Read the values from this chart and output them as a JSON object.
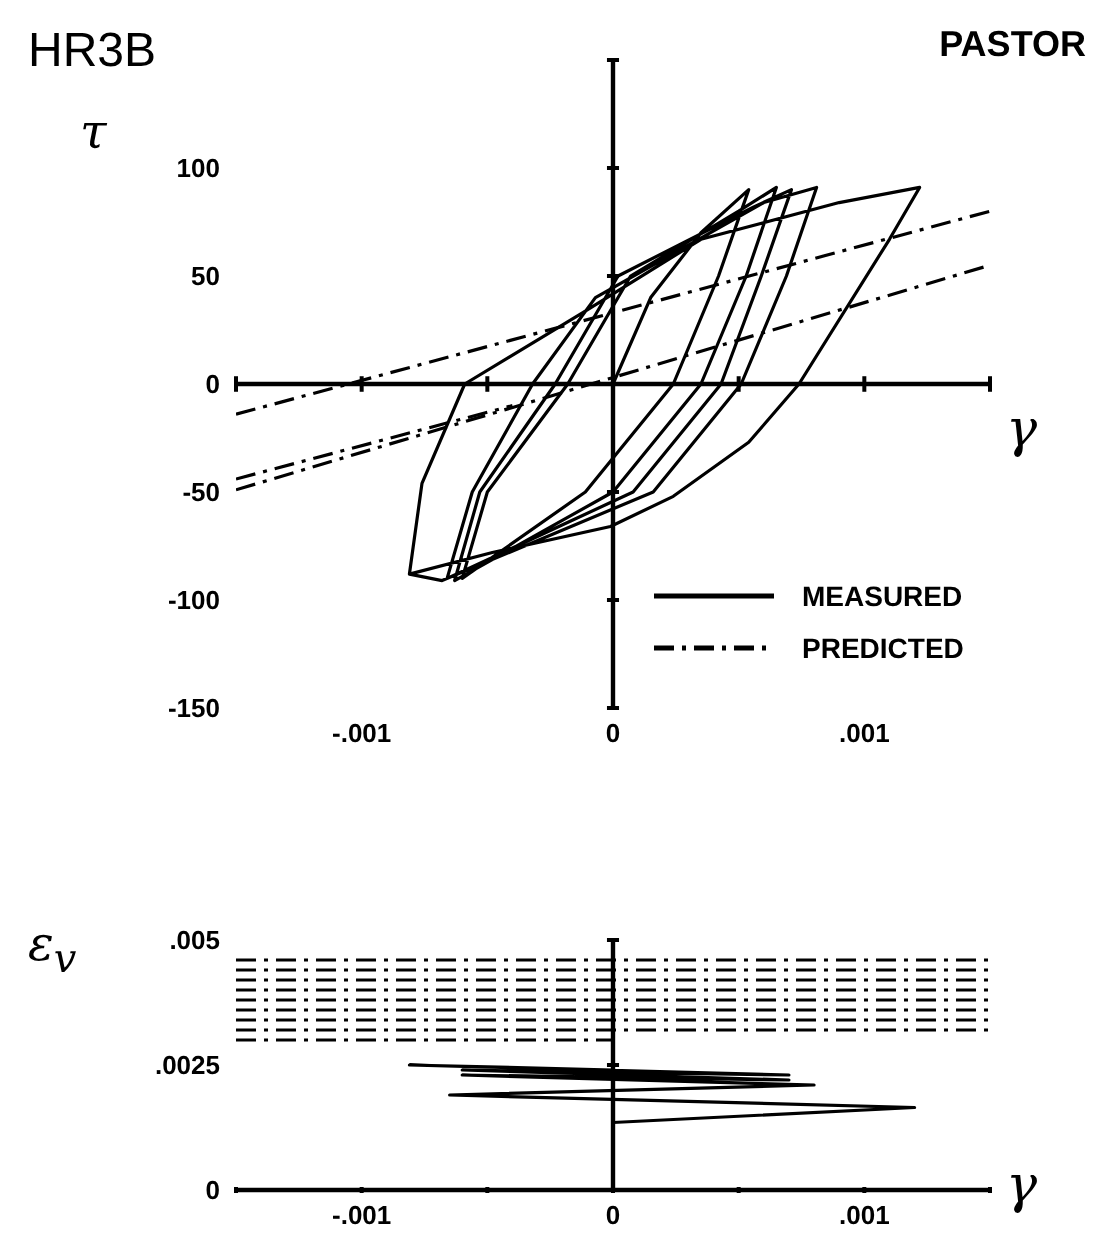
{
  "chart_data": [
    {
      "type": "line",
      "title": "HR3B",
      "subtitle": "PASTOR",
      "xlabel": "γ",
      "ylabel": "τ",
      "xlim": [
        -0.0015,
        0.0015
      ],
      "ylim": [
        -150,
        150
      ],
      "xticks": [
        {
          "value": -0.0015,
          "label": null
        },
        {
          "value": -0.001,
          "label": "-.001"
        },
        {
          "value": -0.0005,
          "label": null
        },
        0,
        {
          "value": 0.0005,
          "label": null
        },
        {
          "value": 0.001,
          "label": ".001"
        },
        {
          "value": 0.0015,
          "label": null
        }
      ],
      "yticks": [
        -150,
        -100,
        -50,
        0,
        50,
        100,
        {
          "value": 150,
          "label": null
        }
      ],
      "legend": "bottom right",
      "marker": "none",
      "series": [
        {
          "name": "MEASURED",
          "color": "#000000",
          "line_style": "solid",
          "x": [
            0,
            0.00015,
            0.00035,
            0.00054,
            0.00042,
            0.00024,
            -0.00011,
            -0.0006,
            -0.0005,
            -0.00018,
            7e-05,
            0.0005,
            0.00065,
            0.00053,
            0.00035,
            0,
            -0.00063,
            -0.00053,
            -0.00023,
            2e-05,
            0.00056,
            0.00071,
            0.00059,
            0.00043,
            8e-05,
            -0.00066,
            -0.00056,
            -0.00032,
            -7e-05,
            0.0006,
            0.00081,
            0.00069,
            0.00051,
            0.00016,
            -0.00068,
            -0.00081,
            -0.00076,
            -0.00059,
            -0.00012,
            0.00035,
            0.0009,
            0.00122,
            0.0011,
            0.00074,
            0.00054,
            0.00024,
            -1e-05,
            -0.00048,
            -0.00081
          ],
          "values": [
            0,
            40,
            70,
            90,
            50,
            0,
            -50,
            -90,
            -50,
            0,
            50,
            80,
            91,
            50,
            0,
            -50,
            -91,
            -50,
            0,
            50,
            82,
            90,
            50,
            0,
            -50,
            -90,
            -50,
            0,
            40,
            84,
            91,
            50,
            0,
            -50,
            -91,
            -88,
            -46,
            0,
            33,
            67,
            84,
            91,
            67,
            0,
            -27,
            -52,
            -66,
            -78,
            -88
          ]
        },
        {
          "name": "PREDICTED",
          "color": "#000000",
          "line_style": "dashed",
          "x": [
            -0.0015,
            0.0015
          ],
          "values": [
            -49,
            55
          ]
        },
        {
          "color": "#000000",
          "line_style": "dashed",
          "x": [
            -0.0015,
            0.0015
          ],
          "values": [
            -14,
            80
          ]
        },
        {
          "color": "#000000",
          "line_style": "dashed",
          "x": [
            -0.0015,
            -0.0004
          ],
          "values": [
            -44,
            -10
          ]
        }
      ]
    },
    {
      "type": "line",
      "xlabel": "γ",
      "ylabel": "ε$_{v}$",
      "xlim": [
        -0.0015,
        0.0015
      ],
      "ylim": [
        0,
        0.005
      ],
      "xticks": [
        {
          "value": -0.0015,
          "label": null
        },
        {
          "value": -0.001,
          "label": "-.001"
        },
        {
          "value": -0.0005,
          "label": null
        },
        0,
        {
          "value": 0.0005,
          "label": null
        },
        {
          "value": 0.001,
          "label": ".001"
        },
        {
          "value": 0.0015,
          "label": null
        }
      ],
      "yticks": [
        0,
        {
          "value": 0.0025,
          "label": ".0025"
        },
        {
          "value": 0.005,
          "label": ".005"
        }
      ],
      "marker": "none",
      "series": [
        {
          "color": "#000000",
          "line_style": "solid",
          "x": [
            0,
            -0.00081,
            0.0007,
            -0.0006,
            0.0007,
            -0.0006,
            0.0008,
            -0.00065,
            0.0012,
            0
          ],
          "values": [
            0.0024,
            0.0025,
            0.0023,
            0.0024,
            0.0022,
            0.0023,
            0.0021,
            0.0019,
            0.00165,
            0.00135
          ]
        },
        {
          "color": "#000000",
          "line_style": "dashed",
          "x": [
            -0.0015,
            0.0015
          ],
          "values": [
            0.0046,
            0.0046
          ]
        },
        {
          "color": "#000000",
          "line_style": "dashed",
          "x": [
            -0.0015,
            0.0015
          ],
          "values": [
            0.0044,
            0.0044
          ]
        },
        {
          "color": "#000000",
          "line_style": "dashed",
          "x": [
            -0.0015,
            0.0015
          ],
          "values": [
            0.0042,
            0.0042
          ]
        },
        {
          "color": "#000000",
          "line_style": "dashed",
          "x": [
            -0.0015,
            0.0015
          ],
          "values": [
            0.004,
            0.004
          ]
        },
        {
          "color": "#000000",
          "line_style": "dashed",
          "x": [
            -0.0015,
            0.0015
          ],
          "values": [
            0.0038,
            0.0038
          ]
        },
        {
          "color": "#000000",
          "line_style": "dashed",
          "x": [
            -0.0015,
            0.0015
          ],
          "values": [
            0.0036,
            0.0036
          ]
        },
        {
          "color": "#000000",
          "line_style": "dashed",
          "x": [
            -0.0015,
            0.0015
          ],
          "values": [
            0.0034,
            0.0034
          ]
        },
        {
          "color": "#000000",
          "line_style": "dashed",
          "x": [
            -0.0015,
            0.0015
          ],
          "values": [
            0.0032,
            0.0032
          ]
        },
        {
          "color": "#000000",
          "line_style": "dashed",
          "x": [
            -0.0015,
            0
          ],
          "values": [
            0.003,
            0.003
          ]
        }
      ]
    }
  ]
}
